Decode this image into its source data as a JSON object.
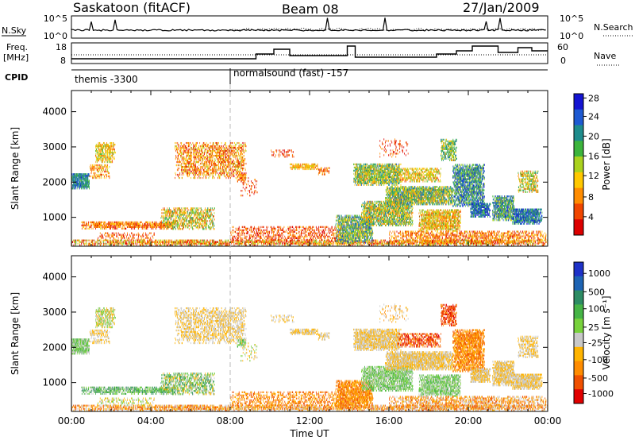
{
  "header": {
    "station": "Saskatoon (fitACF)",
    "beam": "Beam 08",
    "date": "27/Jan/2009"
  },
  "params": {
    "nsky_label": "N.Sky",
    "nsearch_label": "N.Search",
    "freq_label": "Freq.",
    "freq_unit": "[MHz]",
    "nave_label": "Nave",
    "cpid_label": "CPID",
    "nsky_ticks": [
      "10^5",
      "10^0"
    ],
    "nsearch_ticks": [
      "10^5",
      "10^0"
    ],
    "freq_ticks": [
      "18",
      "8"
    ],
    "nave_ticks": [
      "60",
      "0"
    ],
    "cpid_modes": [
      {
        "name": "themis -3300",
        "start": 0.0
      },
      {
        "name": "normalsound (fast) -157",
        "start": 8.0
      }
    ]
  },
  "chart_data": [
    {
      "type": "heatmap",
      "name": "power",
      "ylabel": "Slant Range [km]",
      "xlabel": "",
      "xlim": [
        0,
        24
      ],
      "ylim": [
        180,
        4600
      ],
      "yticks": [
        "1000",
        "2000",
        "3000",
        "4000"
      ],
      "colorbar": {
        "label": "Power [dB]",
        "ticks": [
          "4",
          "8",
          "12",
          "16",
          "20",
          "24",
          "28"
        ],
        "colors": [
          "#1414d2",
          "#1e5ad2",
          "#1e8c8c",
          "#3cb43c",
          "#aad21e",
          "#ffc800",
          "#ff8c00",
          "#f04600",
          "#dc0000"
        ]
      }
    },
    {
      "type": "heatmap",
      "name": "velocity",
      "ylabel": "Slant Range [km]",
      "xlabel": "Time UT",
      "xlim": [
        0,
        24
      ],
      "ylim": [
        180,
        4600
      ],
      "yticks": [
        "1000",
        "2000",
        "3000",
        "4000"
      ],
      "xticks": [
        "00:00",
        "04:00",
        "08:00",
        "12:00",
        "16:00",
        "20:00",
        "00:00"
      ],
      "colorbar": {
        "label": "Velocity [m s⁻¹]",
        "ticks": [
          "1000",
          "500",
          "100",
          "25",
          "-25",
          "-100",
          "-500",
          "-1000"
        ],
        "colors": [
          "#1e32c8",
          "#1e64b4",
          "#2d8c64",
          "#46b446",
          "#78d23c",
          "#c8c8c8",
          "#ffb400",
          "#ff8c00",
          "#f05000",
          "#e10000"
        ]
      }
    }
  ]
}
